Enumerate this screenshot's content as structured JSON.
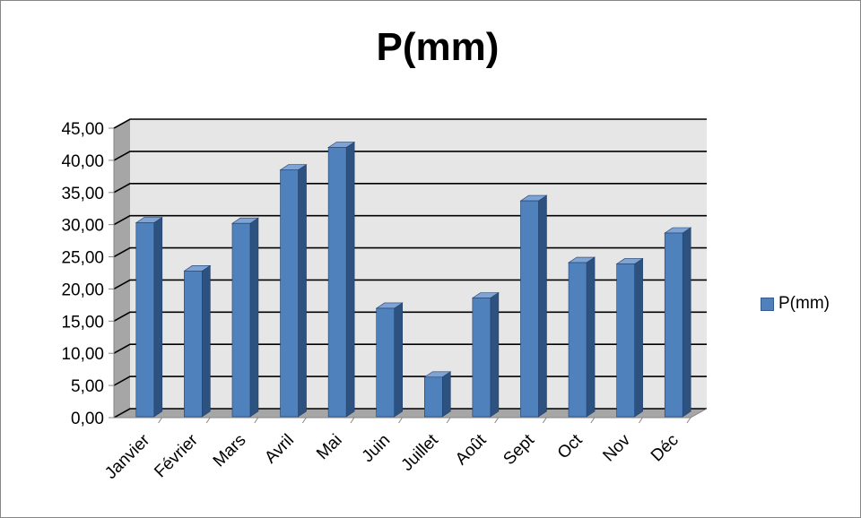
{
  "chart_data": {
    "type": "bar",
    "title": "P(mm)",
    "categories": [
      "Janvier",
      "Février",
      "Mars",
      "Avril",
      "Mai",
      "Juin",
      "Juillet",
      "Août",
      "Sept",
      "Oct",
      "Nov",
      "Déc"
    ],
    "series": [
      {
        "name": "P(mm)",
        "values": [
          30.3,
          22.8,
          30.2,
          38.5,
          42.0,
          17.0,
          6.3,
          18.6,
          33.7,
          24.1,
          23.9,
          28.7
        ]
      }
    ],
    "ylim": [
      0,
      45
    ],
    "ytick_labels": [
      "0,00",
      "5,00",
      "10,00",
      "15,00",
      "20,00",
      "25,00",
      "30,00",
      "35,00",
      "40,00",
      "45,00"
    ],
    "grid": true,
    "legend": "right",
    "colors": {
      "bar": "#4F81BD",
      "bar_side": "#2E5280",
      "bar_top": "#7EA3D4",
      "wall": "#E6E6E6",
      "floor": "#A6A6A6"
    }
  }
}
